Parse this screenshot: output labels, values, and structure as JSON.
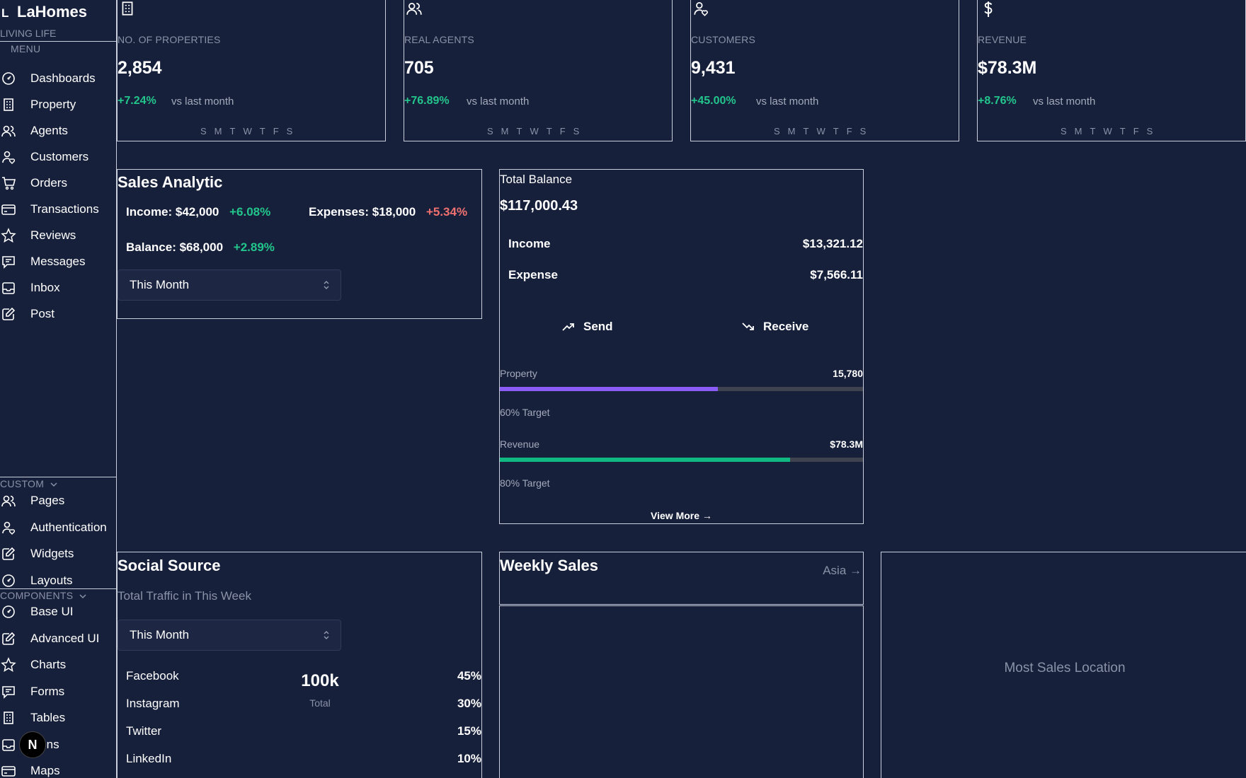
{
  "brand": {
    "icon_letter": "L",
    "name": "LaHomes",
    "tagline": "LIVING LIFE"
  },
  "sidebar": {
    "menu_title": "MENU",
    "menu_items": [
      {
        "label": "Dashboards",
        "icon": "gauge-icon"
      },
      {
        "label": "Property",
        "icon": "building-icon"
      },
      {
        "label": "Agents",
        "icon": "users-icon"
      },
      {
        "label": "Customers",
        "icon": "user-heart-icon"
      },
      {
        "label": "Orders",
        "icon": "cart-icon"
      },
      {
        "label": "Transactions",
        "icon": "credit-card-icon"
      },
      {
        "label": "Reviews",
        "icon": "star-icon"
      },
      {
        "label": "Messages",
        "icon": "message-icon"
      },
      {
        "label": "Inbox",
        "icon": "inbox-icon"
      },
      {
        "label": "Post",
        "icon": "edit-icon"
      }
    ],
    "custom_title": "CUSTOM",
    "custom_items": [
      {
        "label": "Pages",
        "icon": "users-icon"
      },
      {
        "label": "Authentication",
        "icon": "user-heart-icon"
      },
      {
        "label": "Widgets",
        "icon": "edit-icon"
      },
      {
        "label": "Layouts",
        "icon": "gauge-icon"
      }
    ],
    "components_title": "COMPONENTS",
    "components_items": [
      {
        "label": "Base UI",
        "icon": "gauge-icon"
      },
      {
        "label": "Advanced UI",
        "icon": "edit-icon"
      },
      {
        "label": "Charts",
        "icon": "star-icon"
      },
      {
        "label": "Forms",
        "icon": "message-icon"
      },
      {
        "label": "Tables",
        "icon": "building-icon"
      },
      {
        "label": "Icons",
        "icon": "inbox-icon"
      },
      {
        "label": "Maps",
        "icon": "credit-card-icon"
      }
    ],
    "next_badge": "N"
  },
  "stats": [
    {
      "label": "NO. OF PROPERTIES",
      "value": "2,854",
      "change": "+7.24%",
      "compare": "vs last month",
      "icon": "building-icon"
    },
    {
      "label": "REAL AGENTS",
      "value": "705",
      "change": "+76.89%",
      "compare": "vs last month",
      "icon": "users-icon"
    },
    {
      "label": "CUSTOMERS",
      "value": "9,431",
      "change": "+45.00%",
      "compare": "vs last month",
      "icon": "user-heart-icon"
    },
    {
      "label": "REVENUE",
      "value": "$78.3M",
      "change": "+8.76%",
      "compare": "vs last month",
      "icon": "dollar-icon"
    }
  ],
  "weekdays": [
    "S",
    "M",
    "T",
    "W",
    "T",
    "F",
    "S"
  ],
  "sales_analytic": {
    "title": "Sales Analytic",
    "income_label": "Income: $42,000",
    "income_change": "+6.08%",
    "expenses_label": "Expenses: $18,000",
    "expenses_change": "+5.34%",
    "balance_label": "Balance: $68,000",
    "balance_change": "+2.89%",
    "period": "This Month"
  },
  "total_balance": {
    "title": "Total Balance",
    "amount": "$117,000.43",
    "income_label": "Income",
    "income_value": "$13,321.12",
    "expense_label": "Expense",
    "expense_value": "$7,566.11",
    "send_label": "Send",
    "receive_label": "Receive",
    "progress": [
      {
        "label": "Property",
        "value": "15,780",
        "target": "60% Target",
        "percent": 60,
        "color": "#8b5cf6"
      },
      {
        "label": "Revenue",
        "value": "$78.3M",
        "target": "80% Target",
        "percent": 80,
        "color": "#10b981"
      }
    ],
    "view_more": "View More →"
  },
  "social_source": {
    "title": "Social Source",
    "subtitle": "Total Traffic in This Week",
    "period": "This Month",
    "total_value": "100k",
    "total_label": "Total",
    "sources": [
      {
        "name": "Facebook",
        "percent": "45%"
      },
      {
        "name": "Instagram",
        "percent": "30%"
      },
      {
        "name": "Twitter",
        "percent": "15%"
      },
      {
        "name": "LinkedIn",
        "percent": "10%"
      }
    ]
  },
  "weekly_sales": {
    "title": "Weekly Sales",
    "region_link": "Asia →"
  },
  "most_sales_location": {
    "title": "Most Sales Location"
  },
  "colors": {
    "background": "#17203b",
    "positive": "#22c58b",
    "negative": "#f07070",
    "border": "#c9cfdc"
  }
}
